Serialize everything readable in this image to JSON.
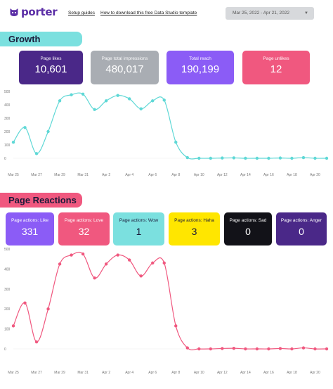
{
  "header": {
    "brand": "porter",
    "links": [
      "Setup guides",
      "How to download this free Data Studio template"
    ],
    "date_range": "Mar 25, 2022 - Apr 21, 2022"
  },
  "growth": {
    "title": "Growth",
    "kpis": [
      {
        "label": "Page likes",
        "value": "10,601",
        "color": "#4a2888"
      },
      {
        "label": "Page total impressions",
        "value": "480,017",
        "color": "#a9adb3"
      },
      {
        "label": "Total reach",
        "value": "190,199",
        "color": "#8b5cf6"
      },
      {
        "label": "Page unlikes",
        "value": "12",
        "color": "#f0587f"
      }
    ]
  },
  "reactions": {
    "title": "Page Reactions",
    "kpis": [
      {
        "label": "Page actions: Like",
        "value": "331",
        "color": "#8b5cf6",
        "text": "#ffffff"
      },
      {
        "label": "Page actions: Love",
        "value": "32",
        "color": "#f0587f",
        "text": "#ffffff"
      },
      {
        "label": "Page actions: Wow",
        "value": "1",
        "color": "#7be0df",
        "text": "#1b1b3a"
      },
      {
        "label": "Page actions: Haha",
        "value": "3",
        "color": "#ffe600",
        "text": "#1b1b3a"
      },
      {
        "label": "Page actions: Sad",
        "value": "0",
        "color": "#121218",
        "text": "#ffffff"
      },
      {
        "label": "Page actions: Anger",
        "value": "0",
        "color": "#4a2888",
        "text": "#ffffff"
      }
    ]
  },
  "chart_data": [
    {
      "type": "line",
      "color": "#5fd8d6",
      "x_ticks": [
        "Mar 25",
        "Mar 27",
        "Mar 29",
        "Mar 31",
        "Apr 2",
        "Apr 4",
        "Apr 6",
        "Apr 8",
        "Apr 10",
        "Apr 12",
        "Apr 14",
        "Apr 16",
        "Apr 18",
        "Apr 20"
      ],
      "y_ticks": [
        "500",
        "400",
        "300",
        "200",
        "100",
        "0"
      ],
      "ylim": [
        0,
        500
      ],
      "values": [
        120,
        230,
        35,
        200,
        430,
        475,
        480,
        365,
        430,
        470,
        445,
        370,
        430,
        435,
        120,
        5,
        0,
        0,
        2,
        3,
        0,
        0,
        0,
        2,
        0,
        5,
        0,
        0
      ]
    },
    {
      "type": "line",
      "color": "#f0587f",
      "x_ticks": [
        "Mar 25",
        "Mar 27",
        "Mar 29",
        "Mar 31",
        "Apr 2",
        "Apr 4",
        "Apr 6",
        "Apr 8",
        "Apr 10",
        "Apr 12",
        "Apr 14",
        "Apr 16",
        "Apr 18",
        "Apr 20"
      ],
      "y_ticks": [
        "500",
        "400",
        "300",
        "200",
        "100",
        "0"
      ],
      "ylim": [
        0,
        500
      ],
      "values": [
        115,
        230,
        35,
        200,
        425,
        470,
        475,
        355,
        425,
        470,
        445,
        365,
        430,
        430,
        115,
        5,
        0,
        0,
        2,
        3,
        0,
        0,
        0,
        2,
        0,
        5,
        0,
        0
      ]
    }
  ]
}
